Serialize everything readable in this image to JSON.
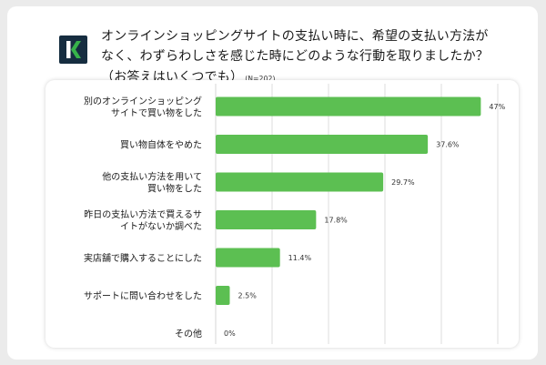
{
  "header": {
    "logo_text": "K",
    "title_line1": "オンラインショッピングサイトの支払い時に、希望の支払い方法が",
    "title_line2": "なく、わずらわしさを感じた時にどのような行動を取りましたか？",
    "title_line3": "（お答えはいくつでも）",
    "sample_note": "(N=202)"
  },
  "colors": {
    "bar": "#5cbf52",
    "grid": "#d4d4d4",
    "logo_bg": "#162d40",
    "logo_accent": "#37b34a"
  },
  "chart_data": {
    "type": "bar",
    "orientation": "horizontal",
    "categories": [
      [
        "別のオンラインショッピング",
        "サイトで買い物をした"
      ],
      [
        "買い物自体をやめた"
      ],
      [
        "他の支払い方法を用いて",
        "買い物をした"
      ],
      [
        "昨日の支払い方法で買えるサ",
        "イトがないか調べた"
      ],
      [
        "実店舗で購入することにした"
      ],
      [
        "サポートに問い合わせをした"
      ],
      [
        "その他"
      ]
    ],
    "values": [
      47,
      37.6,
      29.7,
      17.8,
      11.4,
      2.5,
      0
    ],
    "value_labels": [
      "47%",
      "37.6%",
      "29.7%",
      "17.8%",
      "11.4%",
      "2.5%",
      "0%"
    ],
    "xlim": [
      0,
      100
    ],
    "unit": "%",
    "grid": true,
    "title": "",
    "xlabel": "",
    "ylabel": ""
  }
}
